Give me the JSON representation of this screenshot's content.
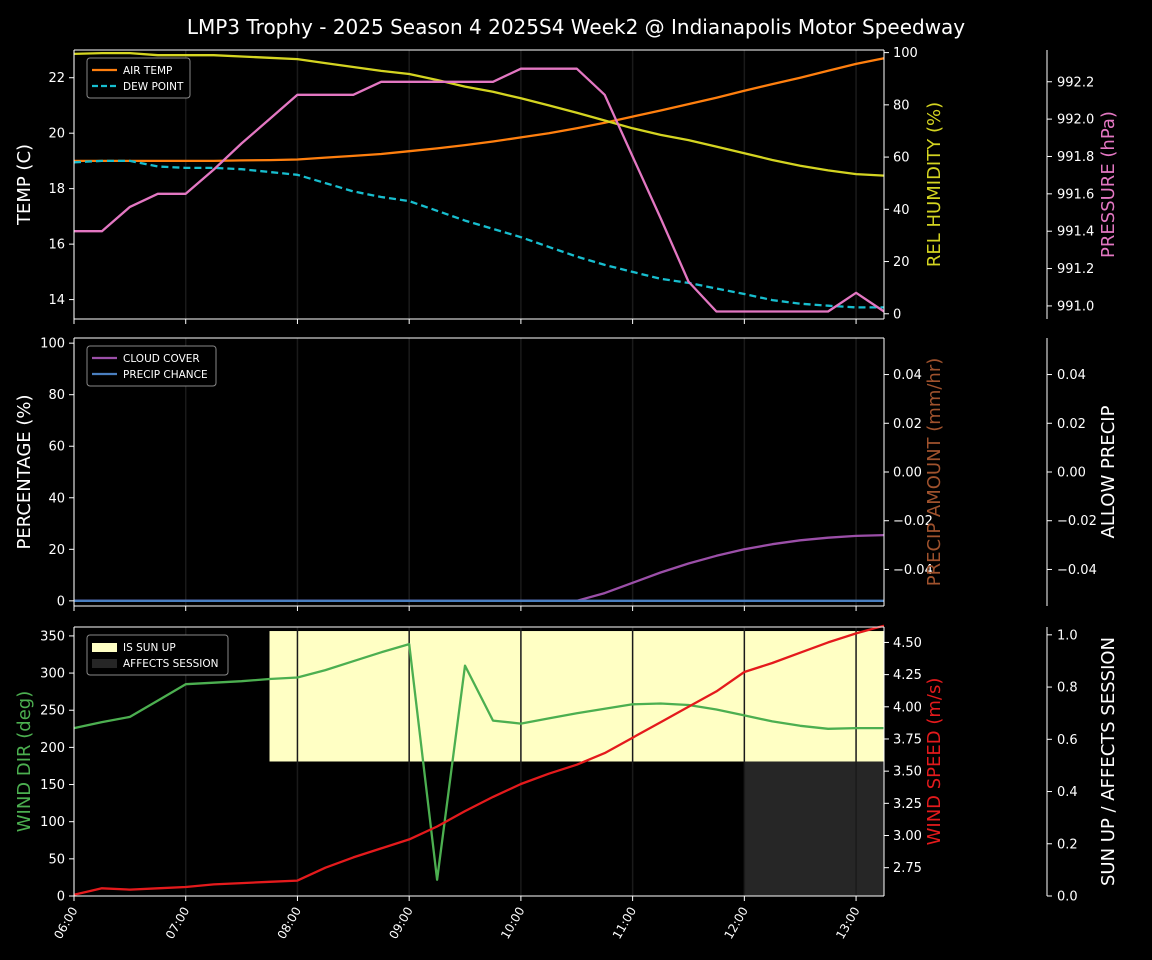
{
  "title": "LMP3 Trophy - 2025 Season 4 2025S4 Week2 @ Indianapolis Motor Speedway",
  "colors": {
    "background": "#000000",
    "foreground": "#ffffff",
    "air_temp": "#ff7f0e",
    "dew_point": "#17becf",
    "rel_humidity": "#d4d421",
    "pressure": "#e377c2",
    "cloud_cover": "#9b4fa8",
    "precip_chance": "#4a7fc0",
    "precip_amount": "#a0522d",
    "wind_dir": "#4caf50",
    "wind_speed": "#e41a1c",
    "sun_up": "#ffffc4",
    "affects_session": "#262626"
  },
  "chart_data": [
    {
      "type": "line",
      "panel": "temperature",
      "x_ticks": [
        "06:00",
        "07:00",
        "08:00",
        "09:00",
        "10:00",
        "11:00",
        "12:00",
        "13:00"
      ],
      "x_range_hours": [
        6.0,
        13.25
      ],
      "axes": {
        "left": {
          "label": "TEMP (C)",
          "range": [
            13.3,
            23.0
          ],
          "ticks": [
            "14",
            "16",
            "18",
            "20",
            "22"
          ],
          "tick_values": [
            14,
            16,
            18,
            20,
            22
          ]
        },
        "right": {
          "label": "REL HUMIDITY (%)",
          "range": [
            -2,
            101
          ],
          "ticks": [
            "0",
            "20",
            "40",
            "60",
            "80",
            "100"
          ],
          "tick_values": [
            0,
            20,
            40,
            60,
            80,
            100
          ]
        },
        "right2": {
          "label": "PRESSURE (hPa)",
          "range": [
            990.93,
            992.37
          ],
          "ticks": [
            "991.0",
            "991.2",
            "991.4",
            "991.6",
            "991.8",
            "992.0",
            "992.2"
          ],
          "tick_values": [
            991.0,
            991.2,
            991.4,
            991.6,
            991.8,
            992.0,
            992.2
          ]
        }
      },
      "legend": {
        "position": "top-left",
        "entries": [
          "AIR TEMP",
          "DEW POINT"
        ]
      },
      "series": [
        {
          "name": "AIR TEMP",
          "axis": "left",
          "style": "solid",
          "x": [
            6.0,
            6.25,
            6.5,
            6.75,
            7.0,
            7.25,
            7.5,
            7.75,
            8.0,
            8.25,
            8.5,
            8.75,
            9.0,
            9.25,
            9.5,
            9.75,
            10.0,
            10.25,
            10.5,
            10.75,
            11.0,
            11.25,
            11.5,
            11.75,
            12.0,
            12.25,
            12.5,
            12.75,
            13.0,
            13.25
          ],
          "y": [
            19.0,
            19.0,
            19.0,
            19.0,
            19.0,
            19.0,
            19.02,
            19.03,
            19.05,
            19.12,
            19.18,
            19.25,
            19.35,
            19.45,
            19.57,
            19.7,
            19.85,
            20.0,
            20.18,
            20.38,
            20.6,
            20.82,
            21.05,
            21.28,
            21.53,
            21.77,
            22.0,
            22.25,
            22.5,
            22.7
          ]
        },
        {
          "name": "DEW POINT",
          "axis": "left",
          "style": "dashed",
          "x": [
            6.0,
            6.25,
            6.5,
            6.75,
            7.0,
            7.25,
            7.5,
            7.75,
            8.0,
            8.25,
            8.5,
            8.75,
            9.0,
            9.25,
            9.5,
            9.75,
            10.0,
            10.25,
            10.5,
            10.75,
            11.0,
            11.25,
            11.5,
            11.75,
            12.0,
            12.25,
            12.5,
            12.75,
            13.0,
            13.25
          ],
          "y": [
            18.95,
            19.0,
            19.0,
            18.8,
            18.75,
            18.75,
            18.7,
            18.6,
            18.5,
            18.2,
            17.9,
            17.7,
            17.55,
            17.2,
            16.85,
            16.55,
            16.25,
            15.9,
            15.55,
            15.25,
            15.0,
            14.75,
            14.6,
            14.4,
            14.2,
            13.98,
            13.85,
            13.78,
            13.72,
            13.72
          ]
        },
        {
          "name": "REL HUMIDITY",
          "axis": "right",
          "style": "solid",
          "x": [
            6.0,
            6.25,
            6.5,
            6.75,
            7.0,
            7.25,
            7.5,
            7.75,
            8.0,
            8.25,
            8.5,
            8.75,
            9.0,
            9.25,
            9.5,
            9.75,
            10.0,
            10.25,
            10.5,
            10.75,
            11.0,
            11.25,
            11.5,
            11.75,
            12.0,
            12.25,
            12.5,
            12.75,
            13.0,
            13.25
          ],
          "y": [
            99.5,
            99.8,
            99.8,
            99.0,
            99.0,
            99.0,
            98.5,
            98.0,
            97.5,
            96.0,
            94.5,
            93.0,
            91.8,
            89.5,
            87.0,
            85.0,
            82.5,
            79.8,
            77.0,
            74.0,
            71.0,
            68.5,
            66.5,
            64.0,
            61.5,
            58.9,
            56.7,
            54.9,
            53.5,
            52.9
          ]
        },
        {
          "name": "PRESSURE",
          "axis": "right2",
          "style": "solid",
          "x": [
            6.0,
            6.25,
            6.5,
            6.75,
            7.0,
            7.25,
            7.5,
            7.75,
            8.0,
            8.25,
            8.5,
            8.75,
            9.0,
            9.25,
            9.5,
            9.75,
            10.0,
            10.25,
            10.5,
            10.75,
            11.0,
            11.25,
            11.5,
            11.75,
            12.0,
            12.25,
            12.5,
            12.75,
            13.0,
            13.25
          ],
          "y": [
            991.4,
            991.4,
            991.53,
            991.6,
            991.6,
            991.73,
            991.87,
            992.0,
            992.13,
            992.13,
            992.13,
            992.2,
            992.2,
            992.2,
            992.2,
            992.2,
            992.27,
            992.27,
            992.27,
            992.13,
            991.8,
            991.47,
            991.13,
            990.97,
            990.97,
            990.97,
            990.97,
            990.97,
            991.07,
            990.97
          ]
        }
      ]
    },
    {
      "type": "line",
      "panel": "precipitation",
      "x_ticks": [
        "06:00",
        "07:00",
        "08:00",
        "09:00",
        "10:00",
        "11:00",
        "12:00",
        "13:00"
      ],
      "x_range_hours": [
        6.0,
        13.25
      ],
      "axes": {
        "left": {
          "label": "PERCENTAGE (%)",
          "range": [
            -2,
            102
          ],
          "ticks": [
            "0",
            "20",
            "40",
            "60",
            "80",
            "100"
          ],
          "tick_values": [
            0,
            20,
            40,
            60,
            80,
            100
          ]
        },
        "right": {
          "label": "PRECIP AMOUNT (mm/hr)",
          "range": [
            -0.055,
            0.055
          ],
          "ticks": [
            "−0.04",
            "−0.02",
            "0.00",
            "0.02",
            "0.04"
          ],
          "tick_values": [
            -0.04,
            -0.02,
            0.0,
            0.02,
            0.04
          ]
        },
        "right2": {
          "label": "ALLOW PRECIP",
          "range": [
            -0.055,
            0.055
          ],
          "ticks": [
            "−0.04",
            "−0.02",
            "0.00",
            "0.02",
            "0.04"
          ],
          "tick_values": [
            -0.04,
            -0.02,
            0.0,
            0.02,
            0.04
          ]
        }
      },
      "legend": {
        "position": "top-left",
        "entries": [
          "CLOUD COVER",
          "PRECIP CHANCE"
        ]
      },
      "series": [
        {
          "name": "CLOUD COVER",
          "axis": "left",
          "style": "solid",
          "x": [
            6.0,
            10.5,
            10.75,
            11.0,
            11.25,
            11.5,
            11.75,
            12.0,
            12.25,
            12.5,
            12.75,
            13.0,
            13.25
          ],
          "y": [
            0,
            0,
            3.0,
            7.0,
            11.0,
            14.5,
            17.5,
            20.0,
            22.0,
            23.5,
            24.5,
            25.2,
            25.5
          ]
        },
        {
          "name": "PRECIP CHANCE",
          "axis": "left",
          "style": "solid",
          "x": [
            6.0,
            13.25
          ],
          "y": [
            0,
            0
          ]
        }
      ]
    },
    {
      "type": "line",
      "panel": "wind",
      "x_ticks": [
        "06:00",
        "07:00",
        "08:00",
        "09:00",
        "10:00",
        "11:00",
        "12:00",
        "13:00"
      ],
      "x_range_hours": [
        6.0,
        13.25
      ],
      "axes": {
        "left": {
          "label": "WIND DIR (deg)",
          "range": [
            0,
            362
          ],
          "ticks": [
            "0",
            "50",
            "100",
            "150",
            "200",
            "250",
            "300",
            "350"
          ],
          "tick_values": [
            0,
            50,
            100,
            150,
            200,
            250,
            300,
            350
          ]
        },
        "right": {
          "label": "WIND SPEED (m/s)",
          "range": [
            2.53,
            4.62
          ],
          "ticks": [
            "2.75",
            "3.00",
            "3.25",
            "3.50",
            "3.75",
            "4.00",
            "4.25",
            "4.50"
          ],
          "tick_values": [
            2.75,
            3.0,
            3.25,
            3.5,
            3.75,
            4.0,
            4.25,
            4.5
          ]
        },
        "right2": {
          "label": "SUN UP / AFFECTS SESSION",
          "range": [
            0,
            1.03
          ],
          "ticks": [
            "0.0",
            "0.2",
            "0.4",
            "0.6",
            "0.8",
            "1.0"
          ],
          "tick_values": [
            0.0,
            0.2,
            0.4,
            0.6,
            0.8,
            1.0
          ]
        }
      },
      "legend": {
        "position": "top-left",
        "entries": [
          "IS SUN UP",
          "AFFECTS SESSION"
        ]
      },
      "bands": [
        {
          "name": "IS SUN UP",
          "x_start": 7.75,
          "x_end": 13.25,
          "y_low": 0.5,
          "y_high": 0.985
        },
        {
          "name": "AFFECTS SESSION",
          "x_start": 12.0,
          "x_end": 13.25,
          "y_low": 0.0,
          "y_high": 0.5
        }
      ],
      "series": [
        {
          "name": "WIND DIR",
          "axis": "left",
          "style": "solid",
          "x": [
            6.0,
            6.25,
            6.5,
            6.75,
            7.0,
            7.25,
            7.5,
            7.75,
            8.0,
            8.25,
            8.5,
            8.75,
            9.0,
            9.25,
            9.5,
            9.75,
            10.0,
            10.25,
            10.5,
            10.75,
            11.0,
            11.25,
            11.5,
            11.75,
            12.0,
            12.25,
            12.5,
            12.75,
            13.0,
            13.25
          ],
          "y": [
            226,
            234,
            241,
            263,
            285,
            287,
            289,
            292,
            294,
            304,
            316,
            328,
            339,
            22,
            310,
            236,
            232,
            239,
            246,
            252,
            258,
            259,
            257,
            251,
            243,
            235,
            229,
            225,
            226,
            226
          ]
        },
        {
          "name": "WIND SPEED",
          "axis": "right",
          "style": "solid",
          "x": [
            6.0,
            6.25,
            6.5,
            6.75,
            7.0,
            7.25,
            7.5,
            7.75,
            8.0,
            8.25,
            8.5,
            8.75,
            9.0,
            9.25,
            9.5,
            9.75,
            10.0,
            10.25,
            10.5,
            10.75,
            11.0,
            11.25,
            11.5,
            11.75,
            12.0,
            12.25,
            12.5,
            12.75,
            13.0,
            13.25
          ],
          "y": [
            2.54,
            2.59,
            2.58,
            2.59,
            2.6,
            2.62,
            2.63,
            2.64,
            2.65,
            2.75,
            2.83,
            2.9,
            2.97,
            3.07,
            3.19,
            3.3,
            3.4,
            3.48,
            3.55,
            3.64,
            3.76,
            3.88,
            4.0,
            4.12,
            4.27,
            4.34,
            4.42,
            4.5,
            4.57,
            4.63
          ]
        }
      ]
    }
  ]
}
